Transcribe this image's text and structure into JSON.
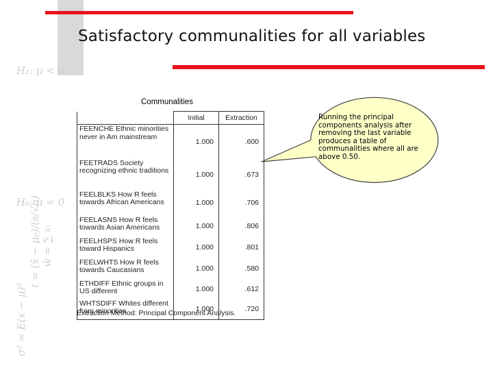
{
  "slide": {
    "title": "Satisfactory communalities for all variables"
  },
  "decoration": {
    "formula_fragments": [
      "H₁: μ < 0",
      "H₀: μ = 0",
      "ŵ = ∑ xᵢ",
      "σ² = E(x − μ)²",
      "t = (x̄ − μ₀)/(s/√n)"
    ]
  },
  "table": {
    "title": "Communalities",
    "headers": [
      "",
      "Initial",
      "Extraction"
    ],
    "rows": [
      {
        "label": "FEENCHE Ethnic minorities never in Am mainstream",
        "initial": "1.000",
        "extraction": ".600"
      },
      {
        "label": "FEETRADS Society recognizing ethnic traditions",
        "initial": "1.000",
        "extraction": ".673"
      },
      {
        "label": "FEELBLKS How R feels towards African Americans",
        "initial": "1.000",
        "extraction": ".706"
      },
      {
        "label": "FEELASNS How R feels towards Asian Americans",
        "initial": "1.000",
        "extraction": ".806"
      },
      {
        "label": "FEELHSPS How R feels toward Hispanics",
        "initial": "1.000",
        "extraction": ".801"
      },
      {
        "label": "FEELWHTS How R feels towards Caucasians",
        "initial": "1.000",
        "extraction": ".580"
      },
      {
        "label": "ETHDIFF Ethnic groups in US different",
        "initial": "1.000",
        "extraction": ".612"
      },
      {
        "label": "WHTSDIFF Whites different from minorities",
        "initial": "1.000",
        "extraction": ".720"
      }
    ],
    "footnote": "Extraction Method: Principal Component Analysis."
  },
  "callout": {
    "text": "Running the principal components analysis after removing the last variable produces a table of communalities where all are above 0.50.",
    "fill_color": "#ffffc8"
  },
  "colors": {
    "accent_red": "#e8141a",
    "accent_gray": "#d9d9d9"
  }
}
